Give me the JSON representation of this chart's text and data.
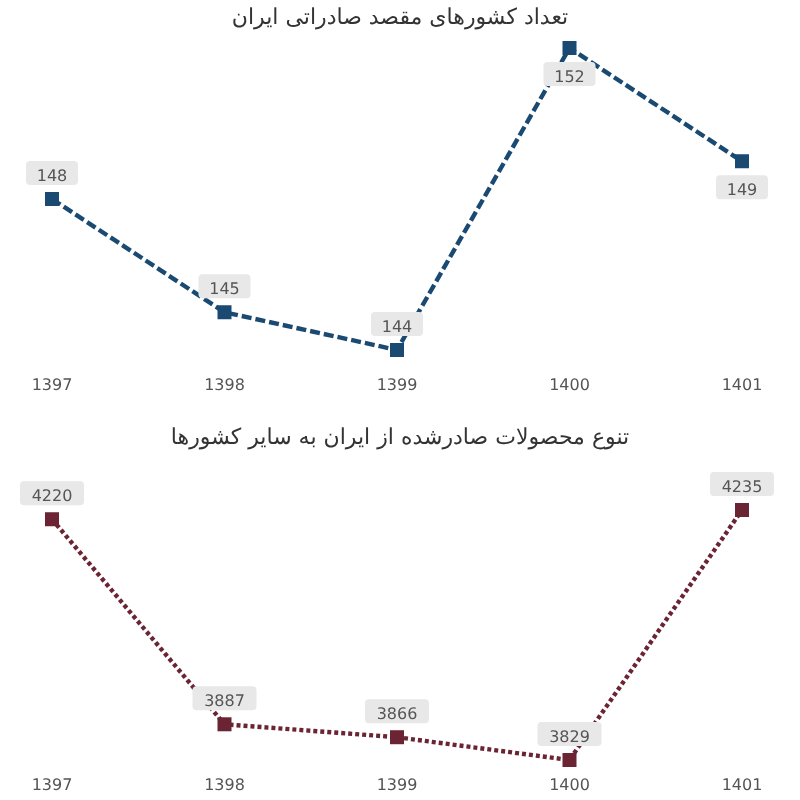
{
  "chart_data": [
    {
      "type": "line",
      "title": "تعداد کشورهای مقصد صادراتی ایران",
      "categories": [
        "1397",
        "1398",
        "1399",
        "1400",
        "1401"
      ],
      "series": [
        {
          "color": "#1a4a72",
          "values": [
            148,
            145,
            144,
            152,
            149
          ]
        }
      ],
      "data_labels": true,
      "marker": "square",
      "line_style": "dashed",
      "grid": false,
      "tick_labels": "x"
    },
    {
      "type": "line",
      "title": "تنوع محصولات صادرشده از ایران به سایر کشورها",
      "categories": [
        "1397",
        "1398",
        "1399",
        "1400",
        "1401"
      ],
      "series": [
        {
          "color": "#6b2433",
          "values": [
            4220,
            3887,
            3866,
            3829,
            4235
          ]
        }
      ],
      "data_labels": true,
      "marker": "square",
      "line_style": "dotted",
      "grid": false,
      "tick_labels": "x"
    }
  ]
}
